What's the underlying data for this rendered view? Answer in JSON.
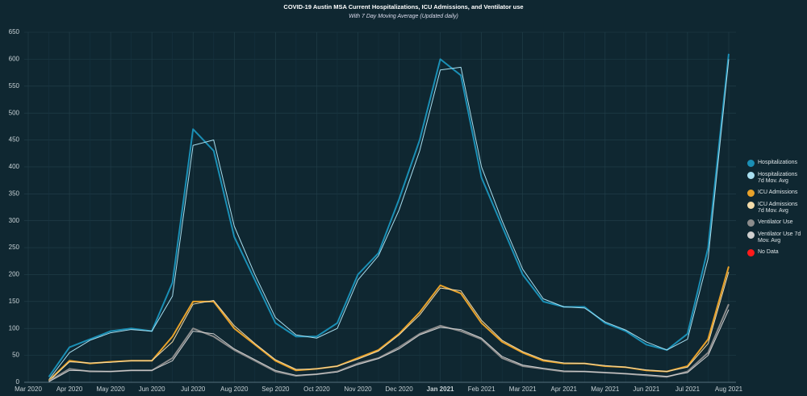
{
  "chart_data": {
    "type": "line",
    "title": "COVID-19 Austin MSA Current Hospitalizations, ICU Admissions, and Ventilator use",
    "subtitle": "With 7 Day Moving Average (Updated daily)",
    "categories": [
      "Mar 2020",
      null,
      "Apr 2020",
      null,
      "May 2020",
      null,
      "Jun 2020",
      null,
      "Jul 2020",
      null,
      "Aug 2020",
      null,
      "Sep 2020",
      null,
      "Oct 2020",
      null,
      "Nov 2020",
      null,
      "Dec 2020",
      null,
      "Jan 2021",
      null,
      "Feb 2021",
      null,
      "Mar 2021",
      null,
      "Apr 2021",
      null,
      "May 2021",
      null,
      "Jun 2021",
      null,
      "Jul 2021",
      null,
      "Aug 2021"
    ],
    "series": [
      {
        "name": "Hospitalizations",
        "color": "#1a8fb5",
        "width": 2,
        "values": [
          null,
          10,
          65,
          80,
          95,
          100,
          95,
          185,
          470,
          430,
          270,
          190,
          110,
          85,
          85,
          110,
          200,
          240,
          340,
          450,
          600,
          570,
          380,
          290,
          200,
          150,
          140,
          140,
          110,
          95,
          70,
          60,
          90,
          250,
          610
        ]
      },
      {
        "name": "Hospitalizations 7d Mov. Avg",
        "color": "#a8dff0",
        "width": 1,
        "values": [
          null,
          5,
          55,
          78,
          92,
          98,
          95,
          160,
          440,
          450,
          290,
          200,
          120,
          88,
          82,
          100,
          190,
          235,
          320,
          430,
          580,
          585,
          400,
          300,
          210,
          155,
          140,
          138,
          112,
          97,
          75,
          60,
          80,
          230,
          600
        ]
      },
      {
        "name": "ICU Admissions",
        "color": "#e8a22a",
        "width": 2,
        "values": [
          null,
          3,
          40,
          35,
          38,
          40,
          40,
          85,
          150,
          150,
          100,
          70,
          40,
          22,
          25,
          30,
          45,
          60,
          90,
          130,
          180,
          165,
          110,
          75,
          55,
          40,
          35,
          35,
          30,
          28,
          22,
          20,
          30,
          80,
          215
        ]
      },
      {
        "name": "ICU Admissions 7d Mov. Avg",
        "color": "#f3dcaa",
        "width": 1,
        "values": [
          null,
          2,
          38,
          36,
          37,
          40,
          40,
          75,
          145,
          152,
          105,
          72,
          42,
          24,
          25,
          30,
          43,
          58,
          88,
          125,
          175,
          170,
          115,
          78,
          57,
          42,
          36,
          35,
          31,
          28,
          23,
          20,
          28,
          72,
          205
        ]
      },
      {
        "name": "Ventilator Use",
        "color": "#8c8c8c",
        "width": 2,
        "values": [
          null,
          2,
          25,
          20,
          20,
          22,
          22,
          45,
          100,
          85,
          60,
          40,
          20,
          12,
          15,
          20,
          35,
          45,
          65,
          90,
          105,
          95,
          80,
          45,
          30,
          25,
          20,
          20,
          18,
          16,
          13,
          10,
          20,
          55,
          145
        ]
      },
      {
        "name": "Ventilator Use 7d Mov. Avg",
        "color": "#cfcfcf",
        "width": 1,
        "values": [
          null,
          1,
          22,
          21,
          20,
          22,
          22,
          40,
          95,
          90,
          62,
          42,
          22,
          13,
          15,
          19,
          33,
          44,
          62,
          88,
          102,
          98,
          82,
          48,
          32,
          26,
          21,
          20,
          18,
          16,
          14,
          11,
          18,
          50,
          135
        ]
      }
    ],
    "legend_extra": [
      {
        "name": "No Data",
        "color": "#ff1a1a"
      }
    ],
    "ylim": [
      0,
      650
    ],
    "yticks": [
      0,
      50,
      100,
      150,
      200,
      250,
      300,
      350,
      400,
      450,
      500,
      550,
      600,
      650
    ],
    "grid": true,
    "legend": "right"
  }
}
